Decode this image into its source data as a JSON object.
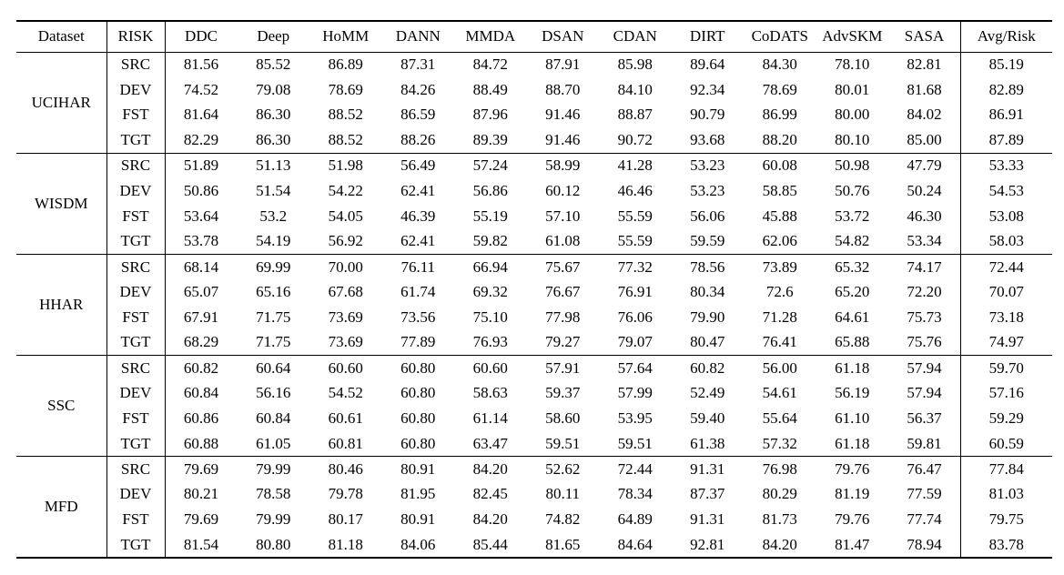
{
  "table": {
    "header": [
      "Dataset",
      "RISK",
      "DDC",
      "Deep",
      "HoMM",
      "DANN",
      "MMDA",
      "DSAN",
      "CDAN",
      "DIRT",
      "CoDATS",
      "AdvSKM",
      "SASA",
      "Avg/Risk"
    ],
    "groups": [
      {
        "dataset": "UCIHAR",
        "rows": [
          {
            "risk": "SRC",
            "values": [
              "81.56",
              "85.52",
              "86.89",
              "87.31",
              "84.72",
              "87.91",
              "85.98",
              "89.64",
              "84.30",
              "78.10",
              "82.81"
            ],
            "avg": "85.19",
            "bold": 7
          },
          {
            "risk": "DEV",
            "values": [
              "74.52",
              "79.08",
              "78.69",
              "84.26",
              "88.49",
              "88.70",
              "84.10",
              "92.34",
              "78.69",
              "80.01",
              "81.68"
            ],
            "avg": "82.89",
            "bold": 7
          },
          {
            "risk": "FST",
            "values": [
              "81.64",
              "86.30",
              "88.52",
              "86.59",
              "87.96",
              "91.46",
              "88.87",
              "90.79",
              "86.99",
              "80.00",
              "84.02"
            ],
            "avg": "86.91",
            "bold": 5
          },
          {
            "risk": "TGT",
            "values": [
              "82.29",
              "86.30",
              "88.52",
              "88.26",
              "89.39",
              "91.46",
              "90.72",
              "93.68",
              "88.20",
              "80.10",
              "85.00"
            ],
            "avg": "87.89",
            "bold": 7
          }
        ]
      },
      {
        "dataset": "WISDM",
        "rows": [
          {
            "risk": "SRC",
            "values": [
              "51.89",
              "51.13",
              "51.98",
              "56.49",
              "57.24",
              "58.99",
              "41.28",
              "53.23",
              "60.08",
              "50.98",
              "47.79"
            ],
            "avg": "53.33",
            "bold": 8
          },
          {
            "risk": "DEV",
            "values": [
              "50.86",
              "51.54",
              "54.22",
              "62.41",
              "56.86",
              "60.12",
              "46.46",
              "53.23",
              "58.85",
              "50.76",
              "50.24"
            ],
            "avg": "54.53",
            "bold": 5
          },
          {
            "risk": "FST",
            "values": [
              "53.64",
              "53.2",
              "54.05",
              "46.39",
              "55.19",
              "57.10",
              "55.59",
              "56.06",
              "45.88",
              "53.72",
              "46.30"
            ],
            "avg": "53.08",
            "bold": 5
          },
          {
            "risk": "TGT",
            "values": [
              "53.78",
              "54.19",
              "56.92",
              "62.41",
              "59.82",
              "61.08",
              "55.59",
              "59.59",
              "62.06",
              "54.82",
              "53.34"
            ],
            "avg": "58.03",
            "bold": 3
          }
        ]
      },
      {
        "dataset": "HHAR",
        "rows": [
          {
            "risk": "SRC",
            "values": [
              "68.14",
              "69.99",
              "70.00",
              "76.11",
              "66.94",
              "75.67",
              "77.32",
              "78.56",
              "73.89",
              "65.32",
              "74.17"
            ],
            "avg": "72.44",
            "bold": 7
          },
          {
            "risk": "DEV",
            "values": [
              "65.07",
              "65.16",
              "67.68",
              "61.74",
              "69.32",
              "76.67",
              "76.91",
              "80.34",
              "72.6",
              "65.20",
              "72.20"
            ],
            "avg": "70.07",
            "bold": 7
          },
          {
            "risk": "FST",
            "values": [
              "67.91",
              "71.75",
              "73.69",
              "73.56",
              "75.10",
              "77.98",
              "76.06",
              "79.90",
              "71.28",
              "64.61",
              "75.73"
            ],
            "avg": "73.18",
            "bold": 7
          },
          {
            "risk": "TGT",
            "values": [
              "68.29",
              "71.75",
              "73.69",
              "77.89",
              "76.93",
              "79.27",
              "79.07",
              "80.47",
              "76.41",
              "65.88",
              "75.76"
            ],
            "avg": "74.97",
            "bold": 7
          }
        ]
      },
      {
        "dataset": "SSC",
        "rows": [
          {
            "risk": "SRC",
            "values": [
              "60.82",
              "60.64",
              "60.60",
              "60.80",
              "60.60",
              "57.91",
              "57.64",
              "60.82",
              "56.00",
              "61.18",
              "57.94"
            ],
            "avg": "59.70",
            "bold": 9
          },
          {
            "risk": "DEV",
            "values": [
              "60.84",
              "56.16",
              "54.52",
              "60.80",
              "58.63",
              "59.37",
              "57.99",
              "52.49",
              "54.61",
              "56.19",
              "57.94"
            ],
            "avg": "57.16",
            "bold": 0
          },
          {
            "risk": "FST",
            "values": [
              "60.86",
              "60.84",
              "60.61",
              "60.80",
              "61.14",
              "58.60",
              "53.95",
              "59.40",
              "55.64",
              "61.10",
              "56.37"
            ],
            "avg": "59.29",
            "bold": 4
          },
          {
            "risk": "TGT",
            "values": [
              "60.88",
              "61.05",
              "60.81",
              "60.80",
              "63.47",
              "59.51",
              "59.51",
              "61.38",
              "57.32",
              "61.18",
              "59.81"
            ],
            "avg": "60.59",
            "bold": 4
          }
        ]
      },
      {
        "dataset": "MFD",
        "rows": [
          {
            "risk": "SRC",
            "values": [
              "79.69",
              "79.99",
              "80.46",
              "80.91",
              "84.20",
              "52.62",
              "72.44",
              "91.31",
              "76.98",
              "79.76",
              "76.47"
            ],
            "avg": "77.84",
            "bold": 7
          },
          {
            "risk": "DEV",
            "values": [
              "80.21",
              "78.58",
              "79.78",
              "81.95",
              "82.45",
              "80.11",
              "78.34",
              "87.37",
              "80.29",
              "81.19",
              "77.59"
            ],
            "avg": "81.03",
            "bold": 7
          },
          {
            "risk": "FST",
            "values": [
              "79.69",
              "79.99",
              "80.17",
              "80.91",
              "84.20",
              "74.82",
              "64.89",
              "91.31",
              "81.73",
              "79.76",
              "77.74"
            ],
            "avg": "79.75",
            "bold": 7
          },
          {
            "risk": "TGT",
            "values": [
              "81.54",
              "80.80",
              "81.18",
              "84.06",
              "85.44",
              "81.65",
              "84.64",
              "92.81",
              "84.20",
              "81.47",
              "78.94"
            ],
            "avg": "83.78",
            "bold": 7
          }
        ]
      }
    ],
    "colors": {
      "text": "#000000",
      "rule": "#000000",
      "background": "#ffffff"
    }
  }
}
